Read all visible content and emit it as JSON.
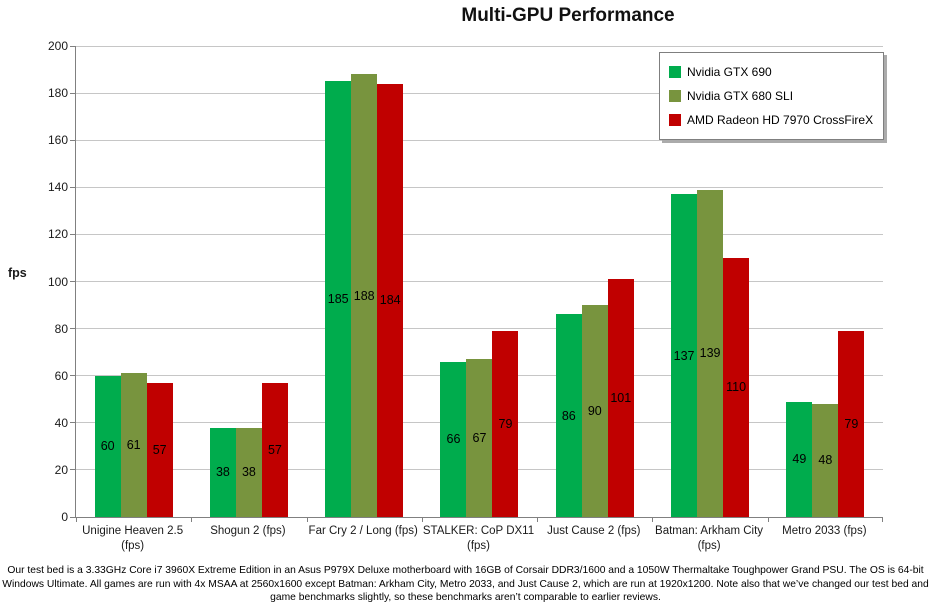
{
  "chart_data": {
    "type": "bar",
    "title": "Multi-GPU Performance",
    "ylabel": "fps",
    "xlabel": "",
    "ylim": [
      0,
      200
    ],
    "ytick_step": 20,
    "grid": "horizontal",
    "legend_position": "top-right-inside",
    "data_labels": "centered-inside-bars",
    "categories": [
      "Unigine Heaven 2.5\n(fps)",
      "Shogun 2 (fps)",
      "Far Cry 2 / Long (fps)",
      "STALKER: CoP DX11\n(fps)",
      "Just Cause 2 (fps)",
      "Batman: Arkham City\n(fps)",
      "Metro 2033 (fps)"
    ],
    "series": [
      {
        "name": "Nvidia GTX 690",
        "color": "#00AC4D",
        "values": [
          60,
          38,
          185,
          66,
          86,
          137,
          49
        ]
      },
      {
        "name": "Nvidia GTX 680 SLI",
        "color": "#78943E",
        "values": [
          61,
          38,
          188,
          67,
          90,
          139,
          48
        ]
      },
      {
        "name": "AMD Radeon HD 7970 CrossFireX",
        "color": "#C00000",
        "values": [
          57,
          57,
          184,
          79,
          101,
          110,
          79
        ]
      }
    ]
  },
  "style": {
    "gridline_color": "#c6c6c6",
    "axis_color": "#808080",
    "legend_border_color": "#7f7f7f",
    "text_color": "#000000"
  },
  "footer_lines": [
    "Our test bed is a 3.33GHz Core i7 3960X Extreme Edition in an Asus P979X Deluxe motherboard with 16GB of Corsair DDR3/1600 and a 1050W Thermaltake Toughpower Grand PSU. The OS is 64-bit",
    "Windows Ultimate. All games are run with 4x MSAA at 2560x1600 except Batman: Arkham City, Metro 2033, and Just Cause 2, which are run at 1920x1200. Note also that we’ve changed our test bed and",
    "game benchmarks slightly, so these benchmarks aren’t comparable to earlier reviews."
  ]
}
